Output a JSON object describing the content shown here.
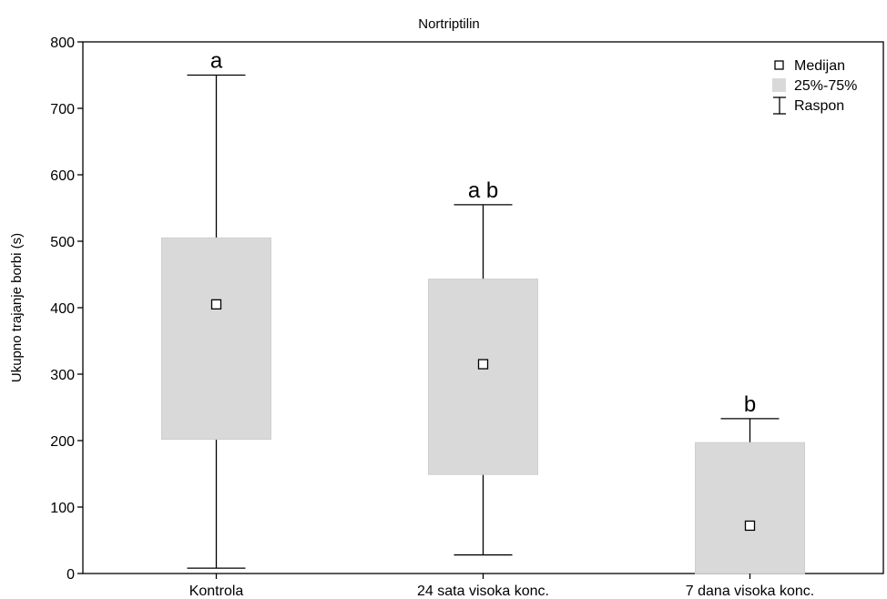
{
  "chart_data": {
    "type": "box",
    "title": "Nortriptilin",
    "xlabel": "",
    "ylabel": "Ukupno trajanje borbi (s)",
    "ylim": [
      0,
      800
    ],
    "yticks": [
      0,
      100,
      200,
      300,
      400,
      500,
      600,
      700,
      800
    ],
    "grid": false,
    "legend_position": "top-right",
    "legend": {
      "median": "Medijan",
      "iqr": "25%-75%",
      "range": "Raspon"
    },
    "box_color": "#d9d9d9",
    "categories": [
      "Kontrola",
      "24 sata visoka konc.",
      "7 dana visoka konc."
    ],
    "boxes": [
      {
        "category": "Kontrola",
        "min": 8,
        "q1": 202,
        "median": 405,
        "q3": 505,
        "max": 750,
        "letter": "a"
      },
      {
        "category": "24 sata visoka konc.",
        "min": 28,
        "q1": 149,
        "median": 315,
        "q3": 443,
        "max": 555,
        "letter": "a b"
      },
      {
        "category": "7 dana visoka konc.",
        "min": 0,
        "q1": 0,
        "median": 72,
        "q3": 197,
        "max": 233,
        "letter": "b"
      }
    ]
  }
}
